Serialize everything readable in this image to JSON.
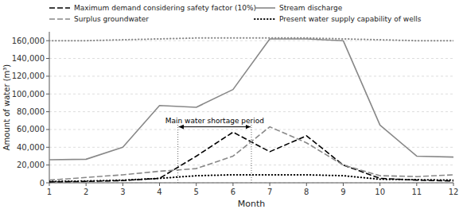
{
  "chart_data": {
    "type": "line",
    "x": [
      1,
      2,
      3,
      4,
      5,
      6,
      7,
      8,
      9,
      10,
      11,
      12
    ],
    "xlabel": "Month",
    "ylabel": "Amount of water (m³)",
    "xlim": [
      1,
      12
    ],
    "xticks": [
      1,
      2,
      3,
      4,
      5,
      6,
      7,
      8,
      9,
      10,
      11,
      12
    ],
    "ylim": [
      0,
      170000
    ],
    "yticks": [
      0,
      {
        "value": 20000,
        "label": "20,000"
      },
      {
        "value": 40000,
        "label": "40,000"
      },
      {
        "value": 60000,
        "label": "60,000"
      },
      {
        "value": 80000,
        "label": "80,000"
      },
      {
        "value": 100000,
        "label": "100,000"
      },
      {
        "value": 120000,
        "label": "120,000"
      },
      {
        "value": 140000,
        "label": "140,000"
      },
      {
        "value": 160000,
        "label": "160,000"
      }
    ],
    "grid": true,
    "legend": "top",
    "series": [
      {
        "name": "Maximum demand considering safety factor (10%)",
        "color": "#000000",
        "line_style": "dashed",
        "values": [
          1000,
          1500,
          2500,
          5000,
          30000,
          57000,
          35000,
          53000,
          20000,
          5000,
          3000,
          2000
        ]
      },
      {
        "name": "Stream discharge",
        "color": "#888888",
        "line_style": "solid",
        "values": [
          26000,
          26500,
          40000,
          87000,
          85000,
          105000,
          162000,
          162000,
          160000,
          65000,
          30000,
          29000
        ]
      },
      {
        "name": "Surplus groundwater",
        "color": "#888888",
        "line_style": "dashed",
        "values": [
          3000,
          6000,
          9000,
          13000,
          16000,
          30000,
          63000,
          45000,
          20000,
          8000,
          7000,
          9000
        ]
      },
      {
        "name": "Present water supply capability of wells",
        "color": "#000000",
        "line_style": "dotted",
        "values": [
          1500,
          2000,
          3000,
          5000,
          8000,
          9000,
          9000,
          9000,
          8000,
          4000,
          3500,
          3000
        ]
      },
      {
        "color": "#888888",
        "line_style": "dotted",
        "values": [
          160000,
          160000,
          161000,
          162000,
          163000,
          163000,
          163000,
          163000,
          162000,
          161000,
          160000,
          160000
        ]
      }
    ],
    "annotations": [
      {
        "text": "Main water shortage period",
        "x_start": 4.5,
        "x_end": 6.5,
        "y": 63000
      }
    ]
  }
}
